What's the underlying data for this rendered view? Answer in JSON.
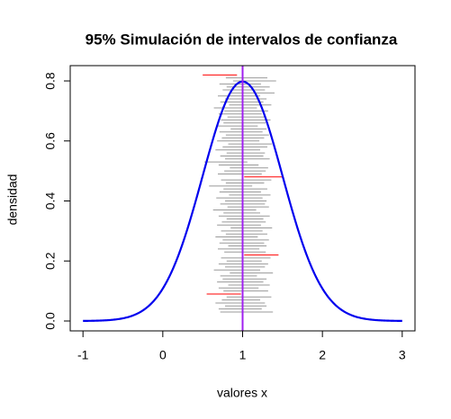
{
  "chart_data": {
    "type": "confidence-intervals",
    "title": "95% Simulación de intervalos de confianza",
    "xlabel": "valores x",
    "ylabel": "densidad",
    "xlim": [
      -1.16,
      3.16
    ],
    "ylim": [
      -0.033,
      0.851
    ],
    "xticks": [
      -1,
      0,
      1,
      2,
      3
    ],
    "yticks": [
      {
        "value": 0,
        "label": "0.0"
      },
      0.2,
      0.4,
      0.6,
      0.8
    ],
    "curve": {
      "mean": 1,
      "sd": 0.5,
      "color": "#0000ee"
    },
    "true_mean": 1,
    "mean_line_color": "#a020f0",
    "covered_color": "#999999",
    "missed_color": "#ff0000",
    "intervals": {
      "y": [
        0.03,
        0.04,
        0.05,
        0.06,
        0.07,
        0.08,
        0.09,
        0.1,
        0.11,
        0.12,
        0.13,
        0.14,
        0.15,
        0.16,
        0.17,
        0.18,
        0.19,
        0.2,
        0.21,
        0.22,
        0.23,
        0.24,
        0.25,
        0.26,
        0.27,
        0.28,
        0.29,
        0.3,
        0.31,
        0.32,
        0.33,
        0.34,
        0.35,
        0.36,
        0.37,
        0.38,
        0.39,
        0.4,
        0.41,
        0.42,
        0.43,
        0.44,
        0.45,
        0.46,
        0.47,
        0.48,
        0.49,
        0.5,
        0.51,
        0.52,
        0.53,
        0.54,
        0.55,
        0.56,
        0.57,
        0.58,
        0.59,
        0.6,
        0.61,
        0.62,
        0.63,
        0.64,
        0.65,
        0.66,
        0.67,
        0.68,
        0.69,
        0.7,
        0.71,
        0.72,
        0.73,
        0.74,
        0.75,
        0.76,
        0.77,
        0.78,
        0.79,
        0.8,
        0.81,
        0.82
      ],
      "lower": [
        0.72,
        0.7,
        0.78,
        0.66,
        0.74,
        0.8,
        0.55,
        0.76,
        0.7,
        0.82,
        0.68,
        0.75,
        0.72,
        0.84,
        0.64,
        0.78,
        0.7,
        0.8,
        0.73,
        1.02,
        0.77,
        0.69,
        0.82,
        0.71,
        0.75,
        0.66,
        0.79,
        0.73,
        0.85,
        0.68,
        0.74,
        0.8,
        0.7,
        0.76,
        0.63,
        0.81,
        0.72,
        0.78,
        0.67,
        0.83,
        0.71,
        0.76,
        0.58,
        0.79,
        0.73,
        1.02,
        0.69,
        0.77,
        0.84,
        0.7,
        0.52,
        0.78,
        0.72,
        0.8,
        0.66,
        0.75,
        0.82,
        0.68,
        0.74,
        0.79,
        0.71,
        0.85,
        0.67,
        0.76,
        0.73,
        0.81,
        0.7,
        0.77,
        0.64,
        0.83,
        0.72,
        0.78,
        0.69,
        0.86,
        0.75,
        0.8,
        0.71,
        0.88,
        0.79,
        0.5
      ],
      "upper": [
        1.38,
        1.24,
        1.3,
        1.28,
        1.22,
        1.36,
        0.98,
        1.32,
        1.2,
        1.34,
        1.26,
        1.3,
        1.18,
        1.38,
        1.22,
        1.28,
        1.32,
        1.24,
        1.35,
        1.45,
        1.29,
        1.21,
        1.3,
        1.27,
        1.33,
        1.19,
        1.31,
        1.25,
        1.37,
        1.23,
        1.29,
        1.26,
        1.34,
        1.22,
        1.17,
        1.33,
        1.28,
        1.3,
        1.25,
        1.35,
        1.23,
        1.31,
        1.12,
        1.27,
        1.36,
        1.5,
        1.24,
        1.29,
        1.32,
        1.2,
        1.06,
        1.34,
        1.26,
        1.28,
        1.22,
        1.31,
        1.37,
        1.21,
        1.27,
        1.33,
        1.25,
        1.3,
        1.19,
        1.29,
        1.35,
        1.27,
        1.24,
        1.32,
        1.18,
        1.36,
        1.26,
        1.3,
        1.22,
        1.4,
        1.28,
        1.34,
        1.23,
        1.42,
        1.31,
        0.93
      ]
    }
  }
}
